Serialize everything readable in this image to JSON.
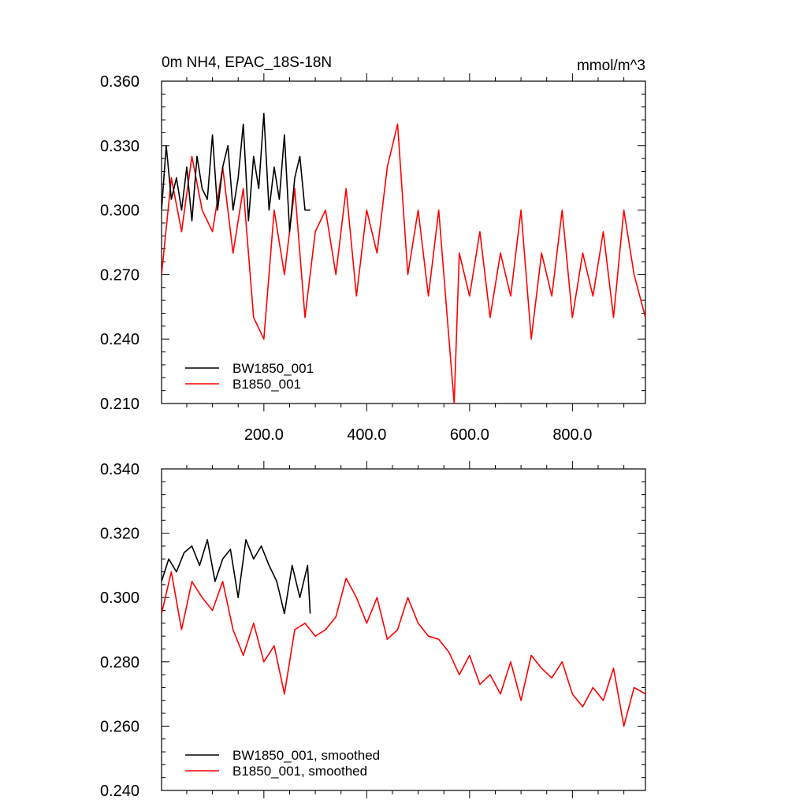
{
  "chart_data": [
    {
      "type": "line",
      "title": "0m NH4, EPAC_18S-18N",
      "units": "mmol/m^3",
      "xlabel": "",
      "ylabel": "",
      "xlim": [
        1,
        942
      ],
      "ylim": [
        0.21,
        0.36
      ],
      "x_ticks": [
        200,
        400,
        600,
        800
      ],
      "x_tick_labels": [
        "200.0",
        "400.0",
        "600.0",
        "800.0"
      ],
      "y_ticks": [
        0.21,
        0.24,
        0.27,
        0.3,
        0.33,
        0.36
      ],
      "y_tick_labels": [
        "0.210",
        "0.240",
        "0.270",
        "0.300",
        "0.330",
        "0.360"
      ],
      "legend_position": "bottom-left",
      "series": [
        {
          "name": "BW1850_001",
          "color": "#000000",
          "x": [
            1,
            10,
            20,
            30,
            40,
            50,
            60,
            70,
            80,
            90,
            100,
            110,
            120,
            130,
            140,
            150,
            160,
            170,
            180,
            190,
            200,
            210,
            220,
            230,
            240,
            250,
            260,
            270,
            280,
            290
          ],
          "values": [
            0.3,
            0.33,
            0.305,
            0.315,
            0.3,
            0.32,
            0.295,
            0.325,
            0.31,
            0.305,
            0.335,
            0.3,
            0.32,
            0.33,
            0.3,
            0.315,
            0.34,
            0.295,
            0.325,
            0.31,
            0.345,
            0.3,
            0.32,
            0.305,
            0.335,
            0.29,
            0.315,
            0.325,
            0.3,
            0.3
          ]
        },
        {
          "name": "B1850_001",
          "color": "#ff0000",
          "x": [
            1,
            20,
            40,
            60,
            80,
            100,
            120,
            140,
            160,
            180,
            200,
            220,
            240,
            260,
            280,
            300,
            320,
            340,
            360,
            380,
            400,
            420,
            440,
            460,
            480,
            500,
            520,
            540,
            560,
            570,
            580,
            600,
            620,
            640,
            660,
            680,
            700,
            720,
            740,
            760,
            780,
            800,
            820,
            840,
            860,
            880,
            900,
            920,
            942
          ],
          "values": [
            0.27,
            0.315,
            0.29,
            0.325,
            0.3,
            0.29,
            0.32,
            0.28,
            0.31,
            0.25,
            0.24,
            0.3,
            0.27,
            0.31,
            0.25,
            0.29,
            0.3,
            0.27,
            0.31,
            0.26,
            0.3,
            0.28,
            0.32,
            0.34,
            0.27,
            0.3,
            0.26,
            0.3,
            0.24,
            0.21,
            0.28,
            0.26,
            0.29,
            0.25,
            0.28,
            0.26,
            0.3,
            0.24,
            0.28,
            0.26,
            0.3,
            0.25,
            0.28,
            0.26,
            0.29,
            0.25,
            0.3,
            0.27,
            0.25
          ]
        }
      ]
    },
    {
      "type": "line",
      "title": "",
      "xlabel": "",
      "ylabel": "",
      "xlim": [
        1,
        942
      ],
      "ylim": [
        0.24,
        0.34
      ],
      "y_ticks": [
        0.24,
        0.26,
        0.28,
        0.3,
        0.32,
        0.34
      ],
      "y_tick_labels": [
        "0.240",
        "0.260",
        "0.280",
        "0.300",
        "0.320",
        "0.340"
      ],
      "legend_position": "bottom-left",
      "series": [
        {
          "name": "BW1850_001, smoothed",
          "color": "#000000",
          "x": [
            1,
            15,
            30,
            45,
            60,
            75,
            90,
            105,
            120,
            135,
            150,
            165,
            180,
            195,
            210,
            225,
            240,
            255,
            270,
            285,
            290
          ],
          "values": [
            0.305,
            0.312,
            0.308,
            0.314,
            0.316,
            0.31,
            0.318,
            0.305,
            0.312,
            0.315,
            0.3,
            0.318,
            0.312,
            0.316,
            0.31,
            0.305,
            0.295,
            0.31,
            0.3,
            0.31,
            0.295
          ]
        },
        {
          "name": "B1850_001, smoothed",
          "color": "#ff0000",
          "x": [
            1,
            20,
            40,
            60,
            80,
            100,
            120,
            140,
            160,
            180,
            200,
            220,
            240,
            260,
            280,
            300,
            320,
            340,
            360,
            380,
            400,
            420,
            440,
            460,
            480,
            500,
            520,
            540,
            560,
            580,
            600,
            620,
            640,
            660,
            680,
            700,
            720,
            740,
            760,
            780,
            800,
            820,
            840,
            860,
            880,
            900,
            920,
            942
          ],
          "values": [
            0.295,
            0.308,
            0.29,
            0.305,
            0.3,
            0.296,
            0.305,
            0.29,
            0.282,
            0.292,
            0.28,
            0.285,
            0.27,
            0.29,
            0.292,
            0.288,
            0.29,
            0.294,
            0.306,
            0.3,
            0.292,
            0.3,
            0.287,
            0.29,
            0.3,
            0.292,
            0.288,
            0.287,
            0.283,
            0.276,
            0.282,
            0.273,
            0.276,
            0.27,
            0.28,
            0.268,
            0.282,
            0.278,
            0.275,
            0.28,
            0.27,
            0.266,
            0.272,
            0.268,
            0.278,
            0.26,
            0.272,
            0.27
          ]
        }
      ]
    }
  ]
}
